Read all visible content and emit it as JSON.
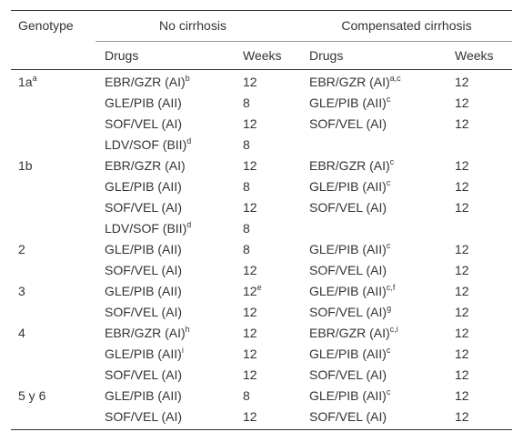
{
  "table": {
    "header": {
      "genotype": "Genotype",
      "groups": [
        "No cirrhosis",
        "Compensated cirrhosis"
      ],
      "sub": [
        "Drugs",
        "Weeks",
        "Drugs",
        "Weeks"
      ]
    },
    "rows": [
      [
        {
          "text": "1a",
          "sup": "a"
        },
        {
          "text": "EBR/GZR (AI)",
          "sup": "b"
        },
        "12",
        {
          "text": "EBR/GZR (AI)",
          "sup": "a,c"
        },
        "12"
      ],
      [
        null,
        "GLE/PIB (AII)",
        "8",
        {
          "text": "GLE/PIB (AII)",
          "sup": "c"
        },
        "12"
      ],
      [
        null,
        "SOF/VEL (AI)",
        "12",
        "SOF/VEL (AI)",
        "12"
      ],
      [
        null,
        {
          "text": "LDV/SOF (BII)",
          "sup": "d"
        },
        "8",
        null,
        null
      ],
      [
        "1b",
        "EBR/GZR (AI)",
        "12",
        {
          "text": "EBR/GZR (AI)",
          "sup": "c"
        },
        "12"
      ],
      [
        null,
        "GLE/PIB (AII)",
        "8",
        {
          "text": "GLE/PIB (AII)",
          "sup": "c"
        },
        "12"
      ],
      [
        null,
        "SOF/VEL (AI)",
        "12",
        "SOF/VEL (AI)",
        "12"
      ],
      [
        null,
        {
          "text": "LDV/SOF (BII)",
          "sup": "d"
        },
        "8",
        null,
        null
      ],
      [
        "2",
        "GLE/PIB (AII)",
        "8",
        {
          "text": "GLE/PIB (AII)",
          "sup": "c"
        },
        "12"
      ],
      [
        null,
        "SOF/VEL (AI)",
        "12",
        "SOF/VEL (AI)",
        "12"
      ],
      [
        "3",
        "GLE/PIB (AII)",
        {
          "text": "12",
          "sup": "e"
        },
        {
          "text": "GLE/PIB (AII)",
          "sup": "c,f"
        },
        "12"
      ],
      [
        null,
        "SOF/VEL (AI)",
        "12",
        {
          "text": "SOF/VEL (AI)",
          "sup": "g"
        },
        "12"
      ],
      [
        "4",
        {
          "text": "EBR/GZR (AI)",
          "sup": "h"
        },
        "12",
        {
          "text": "EBR/GZR (AI)",
          "sup": "c,i"
        },
        "12"
      ],
      [
        null,
        {
          "text": "GLE/PIB (AII)",
          "sup": "i"
        },
        "12",
        {
          "text": "GLE/PIB (AII)",
          "sup": "c"
        },
        "12"
      ],
      [
        null,
        "SOF/VEL (AI)",
        "12",
        "SOF/VEL (AI)",
        "12"
      ],
      [
        "5 y 6",
        "GLE/PIB (AII)",
        "8",
        {
          "text": "GLE/PIB (AII)",
          "sup": "c"
        },
        "12"
      ],
      [
        null,
        "SOF/VEL (AI)",
        "12",
        "SOF/VEL (AI)",
        "12"
      ]
    ]
  }
}
